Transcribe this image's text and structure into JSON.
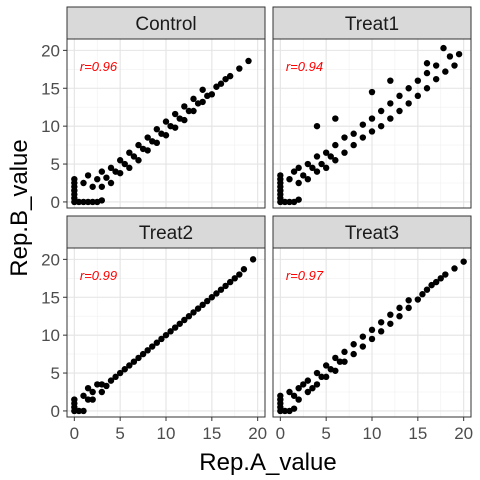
{
  "chart_data": {
    "type": "scatter",
    "facet_layout": "2x2",
    "xlabel": "Rep.A_value",
    "ylabel": "Rep.B_value",
    "xlim": [
      -0.8,
      20.8
    ],
    "ylim": [
      -0.8,
      21.5
    ],
    "x_ticks": [
      0,
      5,
      10,
      15,
      20
    ],
    "y_ticks": [
      0,
      5,
      10,
      15,
      20
    ],
    "grid": true,
    "point_color": "#000000",
    "annotation_color": "#ff0000",
    "strip_fill": "#d9d9d9",
    "panels": [
      {
        "title": "Control",
        "annotation": "r=0.96",
        "points": [
          [
            0,
            0
          ],
          [
            0,
            0.5
          ],
          [
            0,
            1.0
          ],
          [
            0,
            1.5
          ],
          [
            0,
            2.0
          ],
          [
            0,
            2.5
          ],
          [
            0,
            3.0
          ],
          [
            0.5,
            0
          ],
          [
            1.0,
            0
          ],
          [
            1.5,
            0
          ],
          [
            2.0,
            0
          ],
          [
            2.5,
            0
          ],
          [
            3.0,
            0.2
          ],
          [
            1.0,
            2.5
          ],
          [
            1.5,
            3.5
          ],
          [
            2.0,
            2.0
          ],
          [
            2.5,
            3.0
          ],
          [
            3.0,
            2.0
          ],
          [
            3.0,
            4.0
          ],
          [
            3.5,
            3.2
          ],
          [
            4.0,
            2.5
          ],
          [
            4.0,
            4.5
          ],
          [
            4.5,
            4.0
          ],
          [
            5.0,
            3.8
          ],
          [
            5.0,
            5.5
          ],
          [
            5.5,
            5.0
          ],
          [
            6.0,
            4.5
          ],
          [
            6.0,
            6.5
          ],
          [
            6.5,
            6.0
          ],
          [
            7.0,
            5.5
          ],
          [
            7.0,
            7.5
          ],
          [
            7.5,
            7.0
          ],
          [
            8.0,
            6.8
          ],
          [
            8.0,
            8.5
          ],
          [
            8.5,
            8.0
          ],
          [
            9.0,
            7.8
          ],
          [
            9.0,
            9.6
          ],
          [
            9.5,
            9.0
          ],
          [
            10.0,
            8.8
          ],
          [
            10.0,
            10.6
          ],
          [
            10.5,
            10.0
          ],
          [
            11.0,
            9.8
          ],
          [
            11.0,
            11.6
          ],
          [
            11.5,
            11.0
          ],
          [
            12.0,
            10.8
          ],
          [
            12.0,
            12.6
          ],
          [
            12.5,
            12.0
          ],
          [
            13.0,
            12.0
          ],
          [
            13.0,
            13.6
          ],
          [
            13.5,
            13.0
          ],
          [
            14.0,
            13.2
          ],
          [
            14.0,
            14.8
          ],
          [
            14.5,
            14.0
          ],
          [
            15.0,
            14.2
          ],
          [
            15.5,
            15.2
          ],
          [
            16.0,
            15.6
          ],
          [
            16.5,
            16.2
          ],
          [
            17.0,
            16.6
          ],
          [
            18.0,
            17.6
          ],
          [
            19.0,
            18.6
          ]
        ]
      },
      {
        "title": "Treat1",
        "annotation": "r=0.94",
        "points": [
          [
            0,
            0
          ],
          [
            0,
            0.5
          ],
          [
            0,
            1.0
          ],
          [
            0,
            1.5
          ],
          [
            0,
            2.0
          ],
          [
            0,
            2.5
          ],
          [
            0,
            3.0
          ],
          [
            0,
            3.5
          ],
          [
            0.5,
            0
          ],
          [
            1.0,
            0
          ],
          [
            1.5,
            0
          ],
          [
            2.0,
            0.3
          ],
          [
            1.0,
            3.0
          ],
          [
            1.5,
            4.0
          ],
          [
            2.0,
            2.5
          ],
          [
            2.0,
            4.5
          ],
          [
            2.5,
            3.5
          ],
          [
            3.0,
            3.0
          ],
          [
            3.0,
            5.0
          ],
          [
            3.5,
            4.5
          ],
          [
            4.0,
            4.0
          ],
          [
            4.0,
            6.0
          ],
          [
            4.5,
            5.0
          ],
          [
            5.0,
            4.5
          ],
          [
            5.0,
            6.5
          ],
          [
            5.5,
            6.0
          ],
          [
            6.0,
            5.5
          ],
          [
            6.0,
            7.5
          ],
          [
            7.0,
            6.5
          ],
          [
            7.0,
            8.5
          ],
          [
            8.0,
            7.5
          ],
          [
            8.0,
            9.0
          ],
          [
            9.0,
            8.5
          ],
          [
            9.0,
            10.2
          ],
          [
            10.0,
            9.3
          ],
          [
            10.0,
            11.0
          ],
          [
            11.0,
            10.0
          ],
          [
            11.0,
            12.0
          ],
          [
            12.0,
            11.0
          ],
          [
            12.0,
            13.0
          ],
          [
            13.0,
            12.0
          ],
          [
            13.0,
            14.0
          ],
          [
            14.0,
            13.0
          ],
          [
            14.0,
            15.0
          ],
          [
            15.0,
            14.0
          ],
          [
            15.0,
            16.0
          ],
          [
            16.0,
            15.0
          ],
          [
            16.0,
            17.0
          ],
          [
            17.0,
            16.2
          ],
          [
            17.0,
            18.0
          ],
          [
            18.0,
            17.2
          ],
          [
            18.5,
            19.2
          ],
          [
            19.0,
            18.0
          ],
          [
            19.5,
            19.5
          ],
          [
            17.8,
            20.3
          ],
          [
            16.0,
            18.3
          ],
          [
            4.0,
            10.0
          ],
          [
            6.0,
            11.0
          ],
          [
            10.0,
            14.5
          ],
          [
            12.0,
            16.0
          ]
        ]
      },
      {
        "title": "Treat2",
        "annotation": "r=0.99",
        "points": [
          [
            0,
            0
          ],
          [
            0,
            0.5
          ],
          [
            0,
            1.0
          ],
          [
            0,
            1.5
          ],
          [
            0.5,
            0
          ],
          [
            1.0,
            0
          ],
          [
            1.0,
            2.0
          ],
          [
            1.5,
            1.5
          ],
          [
            1.5,
            3.0
          ],
          [
            2.0,
            1.5
          ],
          [
            2.0,
            2.5
          ],
          [
            2.5,
            3.5
          ],
          [
            3.0,
            2.5
          ],
          [
            3.0,
            3.5
          ],
          [
            3.5,
            3.3
          ],
          [
            4.0,
            4.0
          ],
          [
            4.5,
            4.5
          ],
          [
            5.0,
            5.0
          ],
          [
            5.5,
            5.5
          ],
          [
            6.0,
            6.0
          ],
          [
            6.5,
            6.5
          ],
          [
            7.0,
            7.0
          ],
          [
            7.5,
            7.5
          ],
          [
            8.0,
            8.0
          ],
          [
            8.5,
            8.5
          ],
          [
            9.0,
            9.0
          ],
          [
            9.5,
            9.5
          ],
          [
            10.0,
            10.0
          ],
          [
            10.5,
            10.5
          ],
          [
            11.0,
            11.0
          ],
          [
            11.5,
            11.5
          ],
          [
            12.0,
            12.0
          ],
          [
            12.5,
            12.5
          ],
          [
            13.0,
            13.0
          ],
          [
            13.5,
            13.5
          ],
          [
            14.0,
            14.0
          ],
          [
            14.5,
            14.5
          ],
          [
            15.0,
            15.0
          ],
          [
            15.5,
            15.5
          ],
          [
            16.0,
            16.0
          ],
          [
            16.5,
            16.5
          ],
          [
            17.0,
            17.0
          ],
          [
            17.5,
            17.5
          ],
          [
            18.0,
            18.0
          ],
          [
            18.5,
            18.7
          ],
          [
            19.5,
            20.0
          ]
        ]
      },
      {
        "title": "Treat3",
        "annotation": "r=0.97",
        "points": [
          [
            0,
            0
          ],
          [
            0,
            0.5
          ],
          [
            0,
            1.0
          ],
          [
            0,
            1.5
          ],
          [
            0,
            2.0
          ],
          [
            0.5,
            0
          ],
          [
            1.0,
            0
          ],
          [
            1.5,
            0.3
          ],
          [
            1.0,
            2.5
          ],
          [
            1.5,
            2.0
          ],
          [
            2.0,
            1.5
          ],
          [
            2.0,
            3.0
          ],
          [
            2.5,
            3.5
          ],
          [
            3.0,
            2.5
          ],
          [
            3.0,
            4.0
          ],
          [
            3.5,
            3.0
          ],
          [
            4.0,
            3.5
          ],
          [
            4.0,
            5.0
          ],
          [
            4.5,
            4.5
          ],
          [
            5.0,
            4.5
          ],
          [
            5.0,
            6.0
          ],
          [
            5.5,
            5.5
          ],
          [
            6.0,
            5.3
          ],
          [
            6.0,
            7.0
          ],
          [
            6.5,
            6.5
          ],
          [
            7.0,
            6.5
          ],
          [
            7.0,
            7.8
          ],
          [
            8.0,
            7.5
          ],
          [
            8.0,
            8.8
          ],
          [
            9.0,
            8.5
          ],
          [
            9.0,
            9.8
          ],
          [
            10.0,
            9.5
          ],
          [
            10.0,
            10.7
          ],
          [
            11.0,
            10.5
          ],
          [
            11.0,
            11.7
          ],
          [
            12.0,
            11.5
          ],
          [
            12.0,
            12.7
          ],
          [
            13.0,
            12.5
          ],
          [
            13.0,
            13.6
          ],
          [
            14.0,
            13.6
          ],
          [
            14.0,
            14.6
          ],
          [
            15.0,
            14.7
          ],
          [
            15.5,
            15.4
          ],
          [
            16.0,
            16.0
          ],
          [
            16.5,
            16.6
          ],
          [
            17.0,
            17.0
          ],
          [
            17.5,
            17.5
          ],
          [
            18.0,
            18.0
          ],
          [
            19.0,
            18.8
          ],
          [
            20.0,
            19.7
          ]
        ]
      }
    ]
  }
}
